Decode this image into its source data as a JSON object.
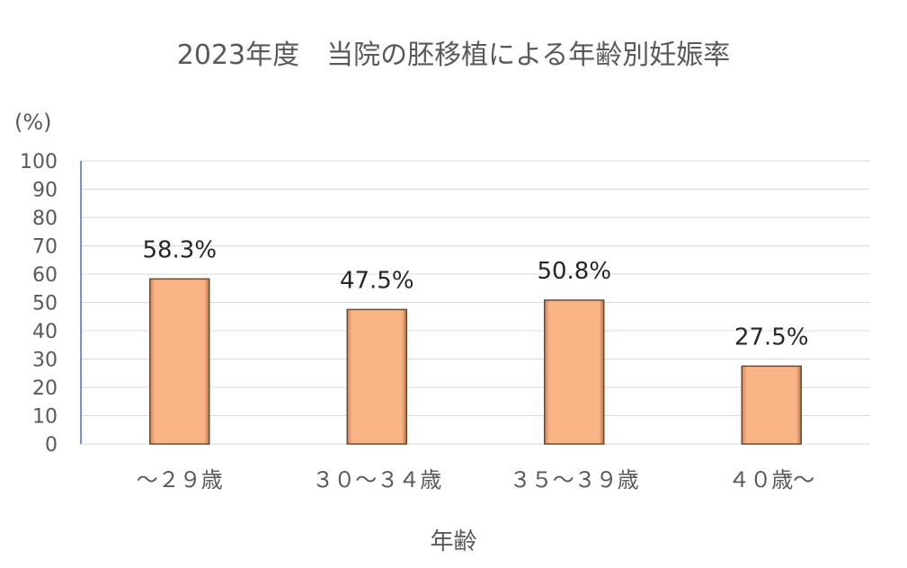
{
  "chart_data": {
    "type": "bar",
    "title": "2023年度　当院の胚移植による年齢別妊娠率",
    "ylabel": "(%)",
    "xlabel": "年齢",
    "categories": [
      "～２９歳",
      "３０～３４歳",
      "３５～３９歳",
      "４０歳～"
    ],
    "values": [
      58.3,
      47.5,
      50.8,
      27.5
    ],
    "data_labels": [
      "58.3%",
      "47.5%",
      "50.8%",
      "27.5%"
    ],
    "ylim": [
      0,
      100
    ],
    "yticks": [
      "0",
      "10",
      "20",
      "30",
      "40",
      "50",
      "60",
      "70",
      "80",
      "90",
      "100"
    ],
    "grid": true,
    "legend": "none",
    "colors": {
      "bar_fill": "#F9B384",
      "bar_edge": "#6E4A30",
      "grid": "#D9D9D9",
      "axis": "#4472C4",
      "text": "#595959"
    }
  }
}
